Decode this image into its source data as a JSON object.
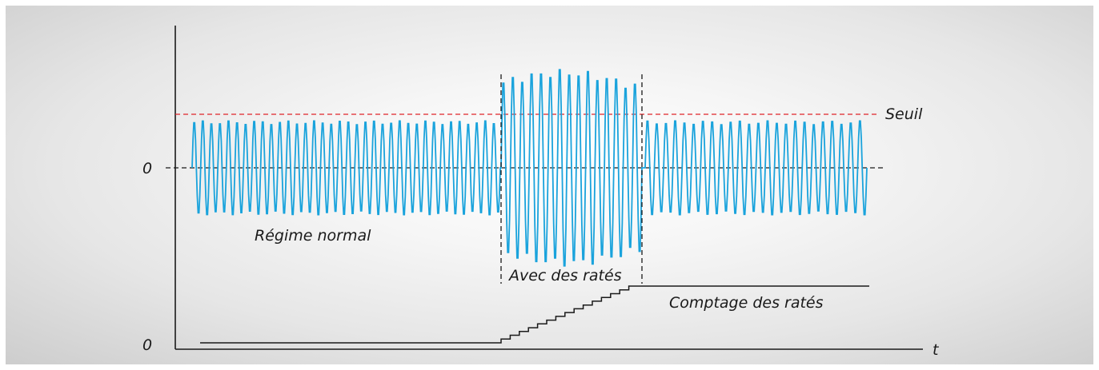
{
  "labels": {
    "zero_signal": "0",
    "zero_counter": "0",
    "time_axis": "t",
    "threshold": "Seuil",
    "normal": "Régime normal",
    "misfire": "Avec des ratés",
    "count": "Comptage des ratés"
  },
  "colors": {
    "signal": "#1aa3dc",
    "threshold": "#e0242a",
    "axes": "#1a1a1a",
    "zero_line": "#1a1a1a",
    "counter": "#1a1a1a"
  },
  "signal": {
    "normal_cycles": 36,
    "misfire_cycles": 15,
    "recovery_cycles": 24,
    "normal_amplitude": 0.92,
    "misfire_amplitude_range": [
      1.25,
      1.85
    ],
    "threshold_level": 1.0
  },
  "counter": {
    "steps": 15
  }
}
